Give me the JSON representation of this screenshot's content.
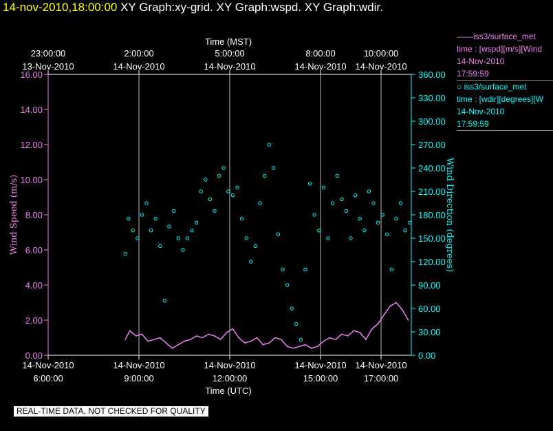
{
  "header": {
    "timestamp": "14-nov-2010,18:00:00",
    "graphs": "XY Graph:xy-grid.  XY Graph:wspd.  XY Graph:wdir."
  },
  "legend": {
    "items": [
      {
        "marker": "——",
        "name": "iss3/surface_met",
        "var": "time : [wspd][m/s][Wind",
        "date": "14-Nov-2010",
        "time": "17:59:59",
        "color": "#ee82ee"
      },
      {
        "marker": "○",
        "name": "iss3/surface_met",
        "var": "time : [wdir][degrees][W",
        "date": "14-Nov-2010",
        "time": "17:59:59",
        "color": "#00ffff"
      }
    ]
  },
  "footer": {
    "quality_note": "REAL-TIME DATA, NOT CHECKED FOR QUALITY"
  },
  "chart_data": {
    "type": "line+scatter",
    "top_axis": {
      "label": "Time (MST)",
      "ticks": [
        {
          "t": 0,
          "line1": "23:00:00",
          "line2": "13-Nov-2010"
        },
        {
          "t": 3,
          "line1": "2:00:00",
          "line2": "14-Nov-2010"
        },
        {
          "t": 6,
          "line1": "5:00:00",
          "line2": "14-Nov-2010"
        },
        {
          "t": 9,
          "line1": "8:00:00",
          "line2": "14-Nov-2010"
        },
        {
          "t": 11,
          "line1": "10:00:00",
          "line2": "14-Nov-2010"
        }
      ]
    },
    "bottom_axis": {
      "label": "Time (UTC)",
      "ticks": [
        {
          "t": 0,
          "line1": "14-Nov-2010",
          "line2": "6:00:00"
        },
        {
          "t": 3,
          "line1": "14-Nov-2010",
          "line2": "9:00:00"
        },
        {
          "t": 6,
          "line1": "14-Nov-2010",
          "line2": "12:00:00"
        },
        {
          "t": 9,
          "line1": "14-Nov-2010",
          "line2": "15:00:00"
        },
        {
          "t": 11,
          "line1": "14-Nov-2010",
          "line2": "17:00:00"
        }
      ],
      "x_unit": "hours after 14-Nov-2010 6:00:00 UTC",
      "xlim": [
        0,
        12
      ]
    },
    "left_axis": {
      "label": "Wind Speed (m/s)",
      "ylim": [
        0,
        16
      ],
      "ticks": [
        "0.00",
        "2.00",
        "4.00",
        "6.00",
        "8.00",
        "10.00",
        "12.00",
        "14.00",
        "16.00"
      ],
      "color": "#ee82ee"
    },
    "right_axis": {
      "label": "Wind Direction (degrees)",
      "ylim": [
        0,
        360
      ],
      "ticks": [
        "0.00",
        "30.00",
        "60.00",
        "90.00",
        "120.00",
        "150.00",
        "180.00",
        "210.00",
        "240.00",
        "270.00",
        "300.00",
        "330.00",
        "360.00"
      ],
      "color": "#00ffff"
    },
    "grid": "vertical lines at major time ticks",
    "series": [
      {
        "name": "iss3/surface_met wspd",
        "axis": "left",
        "style": "line",
        "color": "#ee82ee",
        "x": [
          2.55,
          2.7,
          2.9,
          3.1,
          3.3,
          3.5,
          3.7,
          3.9,
          4.1,
          4.3,
          4.5,
          4.7,
          4.9,
          5.1,
          5.3,
          5.5,
          5.7,
          5.9,
          6.1,
          6.3,
          6.5,
          6.7,
          6.9,
          7.1,
          7.3,
          7.5,
          7.7,
          7.9,
          8.1,
          8.3,
          8.5,
          8.7,
          8.9,
          9.1,
          9.3,
          9.5,
          9.7,
          9.9,
          10.1,
          10.3,
          10.5,
          10.7,
          10.9,
          11.1,
          11.3,
          11.5,
          11.7,
          11.9
        ],
        "y": [
          0.9,
          1.4,
          1.1,
          1.2,
          0.8,
          0.9,
          1.0,
          0.7,
          0.4,
          0.6,
          0.8,
          0.9,
          1.1,
          1.0,
          1.2,
          1.1,
          0.9,
          1.3,
          1.5,
          1.0,
          0.7,
          0.8,
          1.0,
          0.6,
          0.7,
          1.0,
          0.9,
          0.5,
          0.4,
          0.5,
          0.6,
          0.4,
          0.5,
          0.8,
          1.0,
          0.9,
          1.2,
          1.1,
          1.4,
          1.3,
          0.9,
          1.5,
          1.8,
          2.3,
          2.8,
          3.0,
          2.6,
          2.0
        ]
      },
      {
        "name": "iss3/surface_met wdir",
        "axis": "right",
        "style": "scatter",
        "color": "#00ffff",
        "x": [
          2.55,
          2.65,
          2.8,
          2.95,
          3.1,
          3.25,
          3.4,
          3.55,
          3.7,
          3.85,
          4.0,
          4.15,
          4.3,
          4.45,
          4.6,
          4.75,
          4.9,
          5.05,
          5.2,
          5.35,
          5.5,
          5.65,
          5.8,
          5.95,
          6.1,
          6.25,
          6.4,
          6.55,
          6.7,
          6.85,
          7.0,
          7.15,
          7.3,
          7.45,
          7.6,
          7.75,
          7.9,
          8.05,
          8.2,
          8.35,
          8.5,
          8.65,
          8.8,
          8.95,
          9.1,
          9.25,
          9.4,
          9.55,
          9.7,
          9.85,
          10.0,
          10.15,
          10.3,
          10.45,
          10.6,
          10.75,
          10.9,
          11.05,
          11.2,
          11.35,
          11.5,
          11.65,
          11.8,
          11.95
        ],
        "y": [
          130,
          175,
          160,
          150,
          180,
          195,
          160,
          175,
          140,
          70,
          165,
          185,
          150,
          135,
          150,
          160,
          170,
          210,
          225,
          200,
          185,
          230,
          240,
          210,
          205,
          215,
          175,
          150,
          120,
          140,
          195,
          230,
          270,
          240,
          155,
          110,
          90,
          60,
          40,
          20,
          110,
          220,
          180,
          160,
          215,
          150,
          195,
          230,
          200,
          185,
          150,
          205,
          175,
          160,
          210,
          195,
          170,
          180,
          155,
          110,
          175,
          195,
          160,
          170
        ]
      }
    ]
  }
}
